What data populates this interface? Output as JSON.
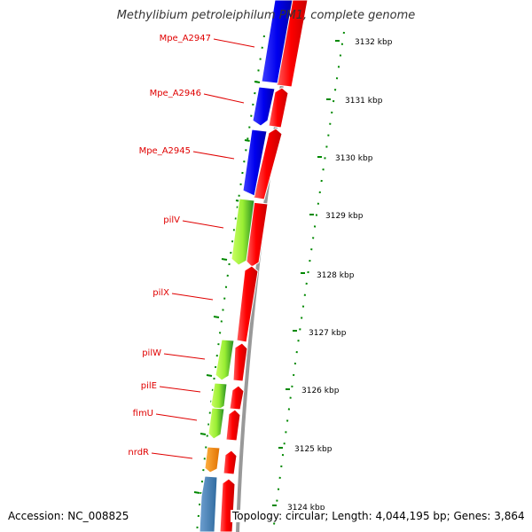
{
  "title": "Methylibium petroleiphilum PM1, complete genome",
  "footer": {
    "accession": "Accession: NC_008825",
    "topology": "Topology: circular; Length: 4,044,195 bp; Genes: 3,864"
  },
  "colors": {
    "forward_genes": "#ff0000",
    "reverse_blue": "#0000ee",
    "reverse_green": "#99ee33",
    "reverse_orange": "#ff8c00",
    "reverse_steelblue": "#4682b4",
    "backbone": "#999999",
    "ruler": "#008800",
    "label_text": "#e00000"
  },
  "ruler": {
    "ticks": [
      "3132 kbp",
      "3131 kbp",
      "3130 kbp",
      "3129 kbp",
      "3128 kbp",
      "3127 kbp",
      "3126 kbp",
      "3125 kbp",
      "3124 kbp"
    ]
  },
  "genes": {
    "labels": [
      "Mpe_A2947",
      "Mpe_A2946",
      "Mpe_A2945",
      "pilV",
      "pilX",
      "pilW",
      "pilE",
      "fimU",
      "nrdR"
    ]
  }
}
